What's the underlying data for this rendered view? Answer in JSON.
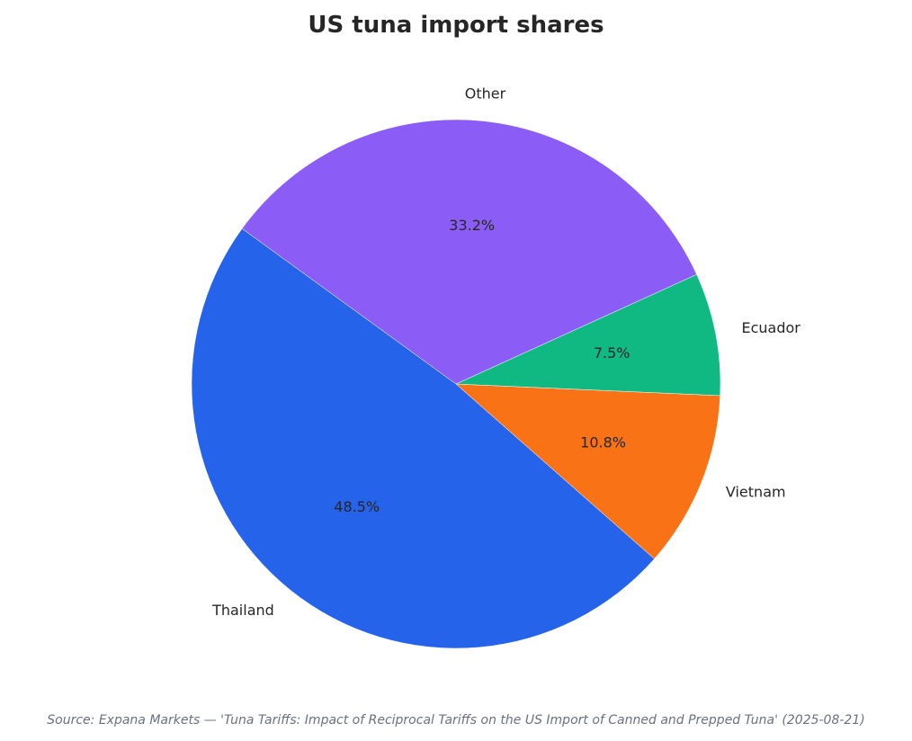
{
  "chart_data": {
    "type": "pie",
    "title": "US tuna import shares",
    "categories": [
      "Thailand",
      "Vietnam",
      "Ecuador",
      "Other"
    ],
    "values": [
      48.5,
      10.8,
      7.5,
      33.2
    ],
    "value_labels": [
      "48.5%",
      "10.8%",
      "7.5%",
      "33.2%"
    ],
    "unit": "%",
    "colors": [
      "#2563eb",
      "#f97316",
      "#10b981",
      "#8b5cf6"
    ],
    "legend": "none",
    "grid": false
  },
  "source": "Source: Expana Markets — 'Tuna Tariffs: Impact of Reciprocal Tariffs on the US Import of Canned and Prepped Tuna' (2025-08-21)"
}
